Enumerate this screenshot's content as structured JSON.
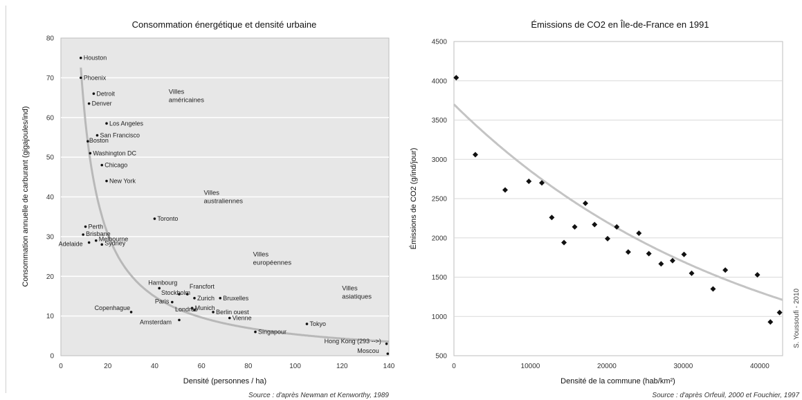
{
  "credit": "S. Youssoufi - 2010",
  "chart_data": [
    {
      "type": "scatter",
      "title": "Consommation énergétique et densité urbaine",
      "xlabel": "Densité (personnes / ha)",
      "ylabel": "Consommation annuelle de carburant (gigajoules/ind)",
      "source": "Source : d'après Newman et Kenworthy, 1989",
      "xlim": [
        0,
        140
      ],
      "ylim": [
        0,
        80
      ],
      "x_ticks": [
        0,
        20,
        40,
        60,
        80,
        100,
        120,
        140
      ],
      "y_ticks": [
        0,
        10,
        20,
        30,
        40,
        50,
        60,
        70,
        80
      ],
      "grid": "horizontal",
      "trend": "decreasing curve",
      "points": [
        {
          "label": "Houston",
          "x": 8.5,
          "y": 75
        },
        {
          "label": "Phoenix",
          "x": 8.5,
          "y": 70
        },
        {
          "label": "Detroit",
          "x": 14,
          "y": 66
        },
        {
          "label": "Denver",
          "x": 12,
          "y": 63.5
        },
        {
          "label": "Los Angeles",
          "x": 19.5,
          "y": 58.5
        },
        {
          "label": "San Francisco",
          "x": 15.5,
          "y": 55.5
        },
        {
          "label": "Boston",
          "x": 11.5,
          "y": 54
        },
        {
          "label": "Washington DC",
          "x": 12.5,
          "y": 51
        },
        {
          "label": "Chicago",
          "x": 17.5,
          "y": 48
        },
        {
          "label": "New York",
          "x": 19.5,
          "y": 44
        },
        {
          "label": "Toronto",
          "x": 40,
          "y": 34.5
        },
        {
          "label": "Perth",
          "x": 10.5,
          "y": 32.5
        },
        {
          "label": "Brisbane",
          "x": 9.5,
          "y": 30.5
        },
        {
          "label": "Melbourne",
          "x": 15,
          "y": 29
        },
        {
          "label": "Adelaide",
          "x": 12,
          "y": 28.5
        },
        {
          "label": "Sydney",
          "x": 17.5,
          "y": 28
        },
        {
          "label": "Hambourg",
          "x": 42,
          "y": 17
        },
        {
          "label": "Francfort",
          "x": 54,
          "y": 15.5
        },
        {
          "label": "Stockholm",
          "x": 50.5,
          "y": 15.5
        },
        {
          "label": "Zurich",
          "x": 57,
          "y": 14.5
        },
        {
          "label": "Bruxelles",
          "x": 68,
          "y": 14.5
        },
        {
          "label": "Paris",
          "x": 47.5,
          "y": 13.5
        },
        {
          "label": "Munich",
          "x": 56,
          "y": 12
        },
        {
          "label": "Londres",
          "x": 57,
          "y": 11.5
        },
        {
          "label": "Berlin ouest",
          "x": 65,
          "y": 11
        },
        {
          "label": "Copenhague",
          "x": 30,
          "y": 11
        },
        {
          "label": "Vienne",
          "x": 72,
          "y": 9.5
        },
        {
          "label": "Amsterdam",
          "x": 50.5,
          "y": 9
        },
        {
          "label": "Tokyo",
          "x": 105,
          "y": 8
        },
        {
          "label": "Singapour",
          "x": 83,
          "y": 6
        },
        {
          "label": "Hong Kong (293 -->)",
          "x": 139,
          "y": 3
        },
        {
          "label": "Moscou",
          "x": 139.5,
          "y": 0.5
        }
      ],
      "group_labels": [
        {
          "text": "Villes américaines",
          "lines": [
            "Villes",
            "américaines"
          ],
          "x": 46,
          "y": 66
        },
        {
          "text": "Villes australiennes",
          "lines": [
            "Villes",
            "australiennes"
          ],
          "x": 61,
          "y": 40.5
        },
        {
          "text": "Villes européennes",
          "lines": [
            "Villes",
            "européennes"
          ],
          "x": 82,
          "y": 25
        },
        {
          "text": "Villes asiatiques",
          "lines": [
            "Villes",
            "asiatiques"
          ],
          "x": 120,
          "y": 16.5
        }
      ]
    },
    {
      "type": "scatter",
      "title": "Émissions de CO2 en Île-de-France en 1991",
      "xlabel": "Densité de la commune (hab/km²)",
      "ylabel": "Émissions de CO2 (g/ind/jour)",
      "source": "Source : d'après Orfeuil, 2000 et Fouchier, 1997",
      "xlim": [
        0,
        43000
      ],
      "ylim": [
        500,
        4500
      ],
      "x_ticks": [
        0,
        10000,
        20000,
        30000,
        40000
      ],
      "y_ticks": [
        500,
        1000,
        1500,
        2000,
        2500,
        3000,
        3500,
        4000,
        4500
      ],
      "grid": "horizontal",
      "trend": "decreasing curve",
      "points": [
        {
          "x": 300,
          "y": 4040
        },
        {
          "x": 2800,
          "y": 3060
        },
        {
          "x": 6700,
          "y": 2610
        },
        {
          "x": 9800,
          "y": 2720
        },
        {
          "x": 11500,
          "y": 2700
        },
        {
          "x": 12800,
          "y": 2260
        },
        {
          "x": 14400,
          "y": 1940
        },
        {
          "x": 15800,
          "y": 2140
        },
        {
          "x": 17200,
          "y": 2440
        },
        {
          "x": 18400,
          "y": 2170
        },
        {
          "x": 20100,
          "y": 1990
        },
        {
          "x": 21300,
          "y": 2140
        },
        {
          "x": 22800,
          "y": 1820
        },
        {
          "x": 24200,
          "y": 2060
        },
        {
          "x": 25500,
          "y": 1800
        },
        {
          "x": 27100,
          "y": 1670
        },
        {
          "x": 28600,
          "y": 1710
        },
        {
          "x": 30100,
          "y": 1790
        },
        {
          "x": 31100,
          "y": 1550
        },
        {
          "x": 33900,
          "y": 1350
        },
        {
          "x": 35500,
          "y": 1590
        },
        {
          "x": 39700,
          "y": 1530
        },
        {
          "x": 41400,
          "y": 930
        },
        {
          "x": 42600,
          "y": 1050
        }
      ]
    }
  ]
}
